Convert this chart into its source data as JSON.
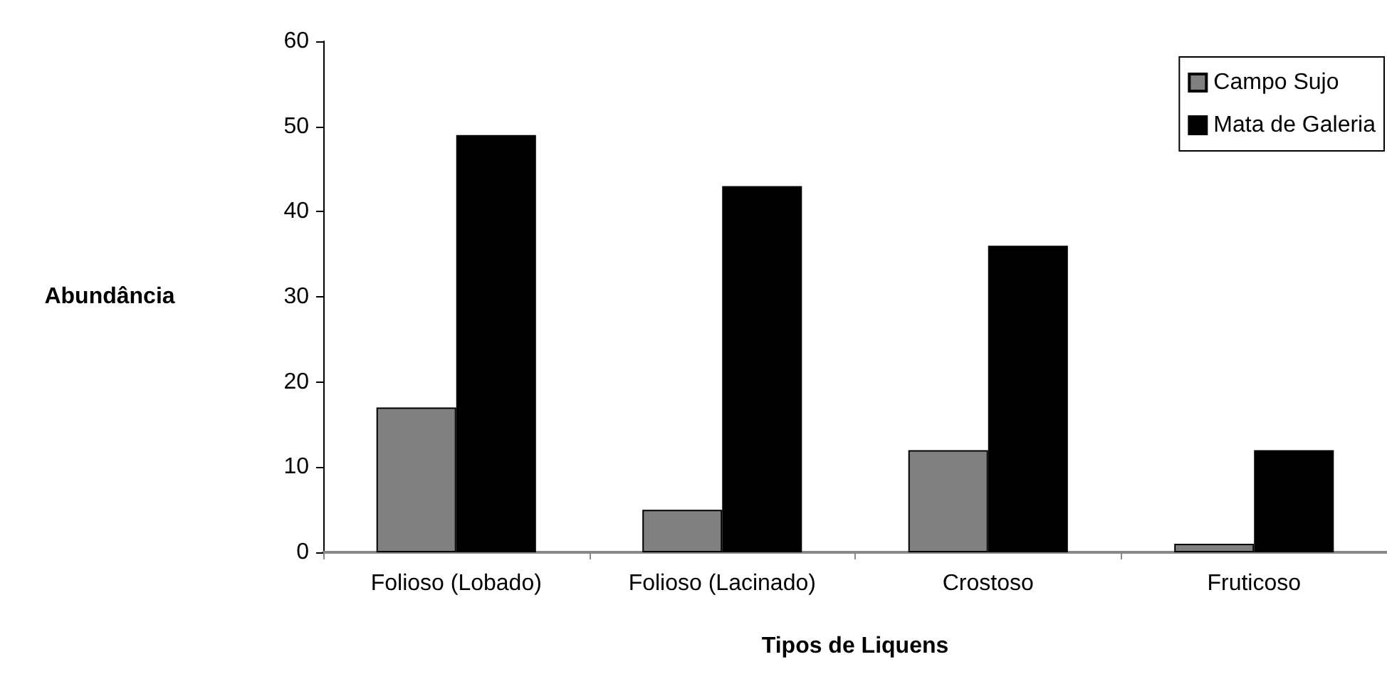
{
  "chart_data": {
    "type": "bar",
    "xlabel": "Tipos de Liquens",
    "ylabel": "Abundância",
    "categories": [
      "Folioso (Lobado)",
      "Folioso (Lacinado)",
      "Crostoso",
      "Fruticoso"
    ],
    "series": [
      {
        "name": "Campo Sujo",
        "color": "#808080",
        "values": [
          17,
          5,
          12,
          1
        ]
      },
      {
        "name": "Mata de Galeria",
        "color": "#000000",
        "values": [
          49,
          43,
          36,
          12
        ]
      }
    ],
    "ylim": [
      0,
      60
    ],
    "yticks": [
      0,
      10,
      20,
      30,
      40,
      50,
      60
    ],
    "grid": false,
    "legend": "top right"
  }
}
